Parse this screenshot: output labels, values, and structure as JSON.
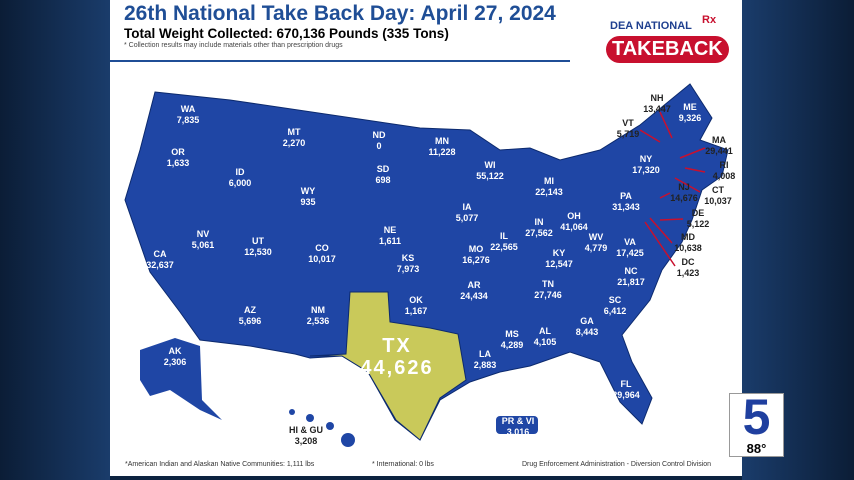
{
  "title": "26th National Take Back Day: April 27, 2024",
  "subtitle": "Total Weight Collected: 670,136 Pounds (335 Tons)",
  "note": "* Collection results may include materials other than prescription drugs",
  "logo": {
    "line1": "DEA NATIONAL",
    "rx": "Rx",
    "line2": "TAKEBACK"
  },
  "colors": {
    "states": "#1f46a5",
    "highlight": "#c9c95a",
    "title": "#1f4e96",
    "leader": "#c8102e"
  },
  "highlight": {
    "state": "TX",
    "value": "44,626"
  },
  "states": [
    {
      "s": "WA",
      "v": "7,835"
    },
    {
      "s": "OR",
      "v": "1,633"
    },
    {
      "s": "CA",
      "v": "32,637"
    },
    {
      "s": "NV",
      "v": "5,061"
    },
    {
      "s": "ID",
      "v": "6,000"
    },
    {
      "s": "MT",
      "v": "2,270"
    },
    {
      "s": "WY",
      "v": "935"
    },
    {
      "s": "UT",
      "v": "12,530"
    },
    {
      "s": "AZ",
      "v": "5,696"
    },
    {
      "s": "CO",
      "v": "10,017"
    },
    {
      "s": "NM",
      "v": "2,536"
    },
    {
      "s": "ND",
      "v": "0"
    },
    {
      "s": "SD",
      "v": "698"
    },
    {
      "s": "NE",
      "v": "1,611"
    },
    {
      "s": "KS",
      "v": "7,973"
    },
    {
      "s": "OK",
      "v": "1,167"
    },
    {
      "s": "MN",
      "v": "11,228"
    },
    {
      "s": "IA",
      "v": "5,077"
    },
    {
      "s": "MO",
      "v": "16,276"
    },
    {
      "s": "AR",
      "v": "24,434"
    },
    {
      "s": "LA",
      "v": "2,883"
    },
    {
      "s": "WI",
      "v": "55,122"
    },
    {
      "s": "IL",
      "v": "22,565"
    },
    {
      "s": "MI",
      "v": "22,143"
    },
    {
      "s": "IN",
      "v": "27,562"
    },
    {
      "s": "OH",
      "v": "41,064"
    },
    {
      "s": "KY",
      "v": "12,547"
    },
    {
      "s": "TN",
      "v": "27,746"
    },
    {
      "s": "MS",
      "v": "4,289"
    },
    {
      "s": "AL",
      "v": "4,105"
    },
    {
      "s": "GA",
      "v": "8,443"
    },
    {
      "s": "FL",
      "v": "29,964"
    },
    {
      "s": "SC",
      "v": "6,412"
    },
    {
      "s": "NC",
      "v": "21,817"
    },
    {
      "s": "VA",
      "v": "17,425"
    },
    {
      "s": "WV",
      "v": "4,779"
    },
    {
      "s": "PA",
      "v": "31,343"
    },
    {
      "s": "NY",
      "v": "17,320"
    },
    {
      "s": "VT",
      "v": "5,719"
    },
    {
      "s": "NH",
      "v": "13,447"
    },
    {
      "s": "ME",
      "v": "9,326"
    },
    {
      "s": "MA",
      "v": "29,441"
    },
    {
      "s": "RI",
      "v": "4,008"
    },
    {
      "s": "CT",
      "v": "10,037"
    },
    {
      "s": "NJ",
      "v": "14,676"
    },
    {
      "s": "DE",
      "v": "5,122"
    },
    {
      "s": "MD",
      "v": "10,638"
    },
    {
      "s": "DC",
      "v": "1,423"
    },
    {
      "s": "AK",
      "v": "2,306"
    },
    {
      "s": "HI & GU",
      "v": "3,208"
    },
    {
      "s": "PR & VI",
      "v": "3,016"
    }
  ],
  "footer": {
    "left": "*American Indian and Alaskan Native Communities: 1,111 lbs",
    "middle": "* International: 0 lbs",
    "right": "Drug Enforcement Administration - Diversion Control Division"
  },
  "channel": {
    "number": "5",
    "temperature": "88°"
  }
}
